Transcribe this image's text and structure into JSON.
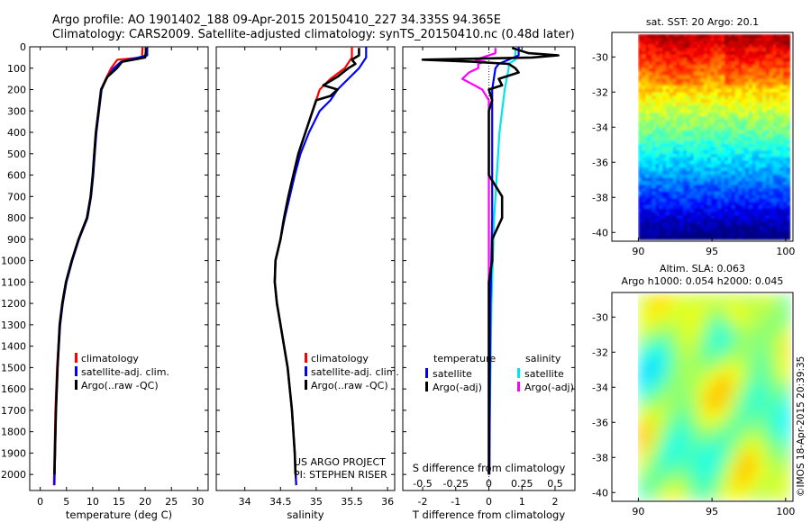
{
  "title_line1": "Argo profile: AO 1901402_188 09-Apr-2015 20150410_227 34.335S 94.365E",
  "title_line2": "Climatology: CARS2009. Satellite-adjusted climatology: synTS_20150410.nc (0.48d later)",
  "project_line1": "US ARGO PROJECT",
  "project_line2": "PI: STEPHEN RISER",
  "credit": "©IMOS 18-Apr-2015 20:39:35",
  "colors": {
    "climatology": "#ff0000",
    "satellite": "#0000ff",
    "argo": "#000000",
    "sat_sal": "#00e5ee",
    "argo_sal": "#ff00ff"
  },
  "chart_data": [
    {
      "type": "line",
      "xlabel": "temperature (deg C)",
      "xlim": [
        -2,
        32
      ],
      "ylim": [
        2075,
        0
      ],
      "x_ticks": [
        0,
        5,
        10,
        15,
        20,
        25,
        30
      ],
      "y_ticks": [
        0,
        100,
        200,
        300,
        400,
        500,
        600,
        700,
        800,
        900,
        1000,
        1100,
        1200,
        1300,
        1400,
        1500,
        1600,
        1700,
        1800,
        1900,
        2000
      ],
      "legend": [
        "climatology",
        "satellite-adj. clim.",
        "Argo(..raw -QC)"
      ],
      "legend_position": "bottom-right",
      "series": [
        {
          "name": "climatology",
          "color": "#ff0000",
          "depth": [
            0,
            50,
            60,
            80,
            100,
            150,
            200,
            300,
            400,
            500,
            600,
            700,
            800,
            900,
            1000,
            1100,
            1200,
            1300,
            1500,
            1700,
            2050
          ],
          "values": [
            19.5,
            19.4,
            14.7,
            14.1,
            13.5,
            12.5,
            11.6,
            11.1,
            10.6,
            10.3,
            10.0,
            9.6,
            8.9,
            7.3,
            6.0,
            4.9,
            4.2,
            3.7,
            3.2,
            2.9,
            2.6
          ]
        },
        {
          "name": "satellite-adj. clim.",
          "color": "#0000ff",
          "depth": [
            0,
            40,
            70,
            100,
            150,
            200,
            300,
            400,
            500,
            600,
            700,
            800,
            900,
            1000,
            1100,
            1200,
            1300,
            1500,
            1700,
            2050
          ],
          "values": [
            20.4,
            20.4,
            15.4,
            14.0,
            12.6,
            11.7,
            11.2,
            10.7,
            10.4,
            10.1,
            9.7,
            9.0,
            7.4,
            6.1,
            5.0,
            4.3,
            3.8,
            3.3,
            3.0,
            2.7
          ]
        },
        {
          "name": "Argo(..raw -QC)",
          "color": "#000000",
          "depth": [
            5,
            30,
            50,
            70,
            100,
            140,
            200,
            300,
            400,
            500,
            600,
            700,
            800,
            900,
            1000,
            1100,
            1200,
            1300,
            1500,
            1700,
            2000
          ],
          "values": [
            20.2,
            20.1,
            20.0,
            15.6,
            14.6,
            12.8,
            11.6,
            11.1,
            10.6,
            10.3,
            10.0,
            9.6,
            8.9,
            7.3,
            6.0,
            4.9,
            4.2,
            3.7,
            3.3,
            3.0,
            2.7
          ]
        }
      ]
    },
    {
      "type": "line",
      "xlabel": "salinity",
      "xlim": [
        33.6,
        36.1
      ],
      "ylim": [
        2075,
        0
      ],
      "x_ticks": [
        34,
        34.5,
        35,
        35.5,
        36
      ],
      "legend": [
        "climatology",
        "satellite-adj. clim.",
        "Argo(..raw -QC)"
      ],
      "legend_position": "bottom-right",
      "series": [
        {
          "name": "climatology",
          "color": "#ff0000",
          "depth": [
            0,
            50,
            100,
            150,
            200,
            250,
            300,
            400,
            500,
            600,
            700,
            800,
            900,
            1000,
            1100,
            1200,
            1300,
            1500,
            1700,
            1900,
            2050
          ],
          "values": [
            35.5,
            35.5,
            35.4,
            35.2,
            35.05,
            35.0,
            34.95,
            34.85,
            34.75,
            34.68,
            34.61,
            34.55,
            34.5,
            34.43,
            34.42,
            34.45,
            34.5,
            34.6,
            34.66,
            34.7,
            34.72
          ]
        },
        {
          "name": "satellite-adj. clim.",
          "color": "#0000ff",
          "depth": [
            0,
            50,
            100,
            150,
            200,
            250,
            300,
            400,
            500,
            600,
            700,
            800,
            900,
            1000,
            1100,
            1200,
            1300,
            1500,
            1700,
            1900,
            2050
          ],
          "values": [
            35.7,
            35.7,
            35.6,
            35.45,
            35.3,
            35.2,
            35.05,
            34.9,
            34.78,
            34.7,
            34.63,
            34.56,
            34.5,
            34.43,
            34.42,
            34.45,
            34.5,
            34.6,
            34.66,
            34.7,
            34.72
          ]
        },
        {
          "name": "Argo(..raw -QC)",
          "color": "#000000",
          "depth": [
            5,
            40,
            60,
            80,
            100,
            140,
            180,
            200,
            230,
            250,
            300,
            400,
            500,
            600,
            700,
            800,
            900,
            1000,
            1100,
            1200,
            1300,
            1500,
            1700,
            1900,
            2000
          ],
          "values": [
            35.6,
            35.6,
            35.5,
            35.55,
            35.45,
            35.3,
            35.1,
            35.3,
            35.2,
            35.0,
            34.95,
            34.85,
            34.75,
            34.68,
            34.61,
            34.55,
            34.5,
            34.43,
            34.42,
            34.45,
            34.5,
            34.6,
            34.66,
            34.7,
            34.71
          ]
        }
      ]
    },
    {
      "type": "line",
      "xlabel": "T difference from climatology",
      "xlabel_s": "S difference from climatology",
      "xlim": [
        -2.6,
        2.6
      ],
      "ylim": [
        2075,
        0
      ],
      "x_ticks": [
        -2,
        -1,
        0,
        1,
        2
      ],
      "x_ticks_s": [
        -0.5,
        -0.25,
        0,
        0.25,
        0.5
      ],
      "x_ticks_s_labels": [
        "-0.5",
        "-0.25",
        "0",
        "0.25",
        "0.5"
      ],
      "legend_t_heading": "temperature",
      "legend_s_heading": "salinity",
      "legend": [
        "satellite",
        "Argo(-adj)",
        "satellite",
        "Argo(-adj)"
      ],
      "legend_position": "bottom",
      "series": [
        {
          "name": "satellite",
          "color": "#0000ff",
          "depth": [
            0,
            40,
            60,
            80,
            100,
            200,
            400,
            800,
            1200,
            1600,
            2000
          ],
          "values": [
            0.9,
            0.9,
            0.6,
            0.3,
            0.2,
            0.1,
            0.1,
            0.1,
            0.05,
            0.03,
            0.02
          ]
        },
        {
          "name": "Argo(-adj)",
          "color": "#000000",
          "depth": [
            5,
            20,
            30,
            40,
            50,
            60,
            70,
            80,
            100,
            120,
            150,
            180,
            200,
            250,
            300,
            400,
            600,
            700,
            750,
            800,
            900,
            1000,
            1100,
            1200,
            1400,
            1600,
            1800,
            2000
          ],
          "values": [
            0.7,
            1.0,
            1.2,
            2.1,
            1.3,
            -2.0,
            -0.5,
            0.6,
            0.8,
            0.9,
            0.3,
            0.4,
            0.0,
            0.1,
            0.0,
            0.0,
            0.0,
            0.4,
            0.4,
            0.4,
            0.1,
            0.1,
            0.0,
            0.0,
            0.0,
            0.0,
            0.0,
            0.0
          ]
        },
        {
          "name": "satellite",
          "color": "#00e5ee",
          "depth": [
            0,
            40,
            60,
            80,
            100,
            200,
            400,
            800,
            1200,
            1600,
            2000
          ],
          "values": [
            0.2,
            0.2,
            0.2,
            0.15,
            0.15,
            0.12,
            0.08,
            0.04,
            0.02,
            0.01,
            0.0
          ]
        },
        {
          "name": "Argo(-adj)",
          "color": "#ff00ff",
          "depth": [
            5,
            30,
            50,
            60,
            70,
            80,
            100,
            120,
            150,
            200,
            250,
            300,
            400,
            600,
            800,
            1200,
            1600,
            2000
          ],
          "values": [
            0.05,
            0.05,
            -0.05,
            -0.1,
            -0.03,
            -0.08,
            -0.08,
            -0.15,
            -0.2,
            -0.05,
            0.0,
            0.0,
            0.0,
            0.0,
            0.0,
            0.0,
            0.0,
            0.0
          ]
        }
      ]
    },
    {
      "type": "heatmap",
      "title": "sat. SST: 20 Argo: 20.1",
      "x_ticks": [
        90,
        95,
        100
      ],
      "y_ticks": [
        -30,
        -32,
        -34,
        -36,
        -38,
        -40
      ],
      "xlim": [
        88.2,
        100.5
      ],
      "ylim": [
        -40.5,
        -28.6
      ],
      "data_extent": {
        "x": [
          90,
          100.3
        ],
        "y": [
          -40.4,
          -28.7
        ]
      }
    },
    {
      "type": "heatmap",
      "title": "Altim. SLA: 0.063",
      "subtitle": "Argo h1000: 0.054 h2000: 0.045",
      "x_ticks": [
        90,
        95,
        100
      ],
      "y_ticks": [
        -30,
        -32,
        -34,
        -36,
        -38,
        -40
      ],
      "xlim": [
        88.2,
        100.5
      ],
      "ylim": [
        -40.5,
        -28.6
      ],
      "data_extent": {
        "x": [
          90,
          100.3
        ],
        "y": [
          -40.4,
          -28.7
        ]
      }
    }
  ]
}
